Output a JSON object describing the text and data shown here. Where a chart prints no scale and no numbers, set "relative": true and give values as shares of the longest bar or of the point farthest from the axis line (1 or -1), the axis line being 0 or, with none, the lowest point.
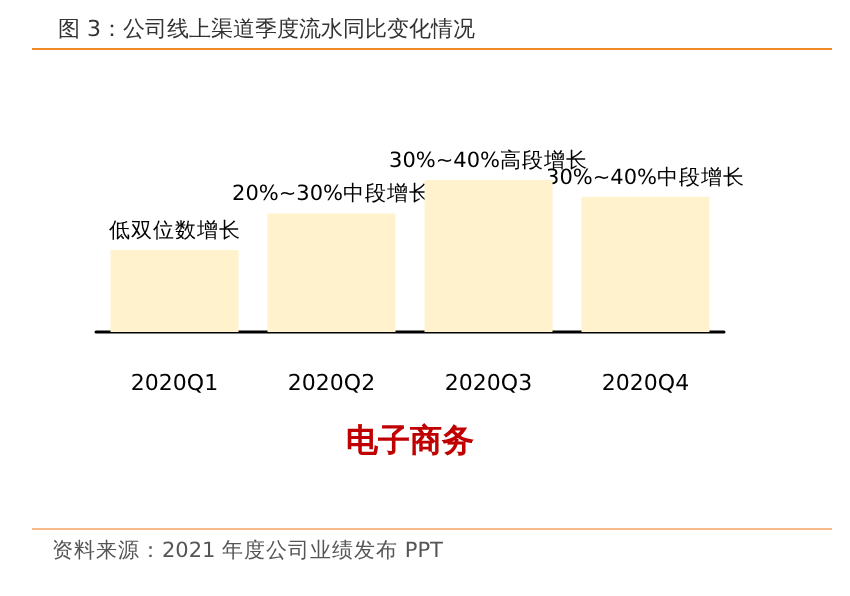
{
  "chart_data": {
    "type": "bar",
    "title": "图 3：公司线上渠道季度流水同比变化情况",
    "xlabel": "电子商务",
    "categories": [
      "2020Q1",
      "2020Q2",
      "2020Q3",
      "2020Q4"
    ],
    "values": [
      0.54,
      0.78,
      1,
      0.89
    ],
    "color": "#fff2cc",
    "relative": true,
    "annotations": [
      {
        "text": "低双位数增长",
        "x": "2020Q1",
        "y": 0.54
      },
      {
        "text": "20%~30%中段增长",
        "x": "2020Q2",
        "y": 0.78
      },
      {
        "text": "30%~40%高段增长",
        "x": "2020Q3",
        "y": 1
      },
      {
        "text": "30%~40%中段增长",
        "x": "2020Q4",
        "y": 0.89
      },
      "资料来源：2021 年度公司业绩发布 PPT"
    ]
  }
}
